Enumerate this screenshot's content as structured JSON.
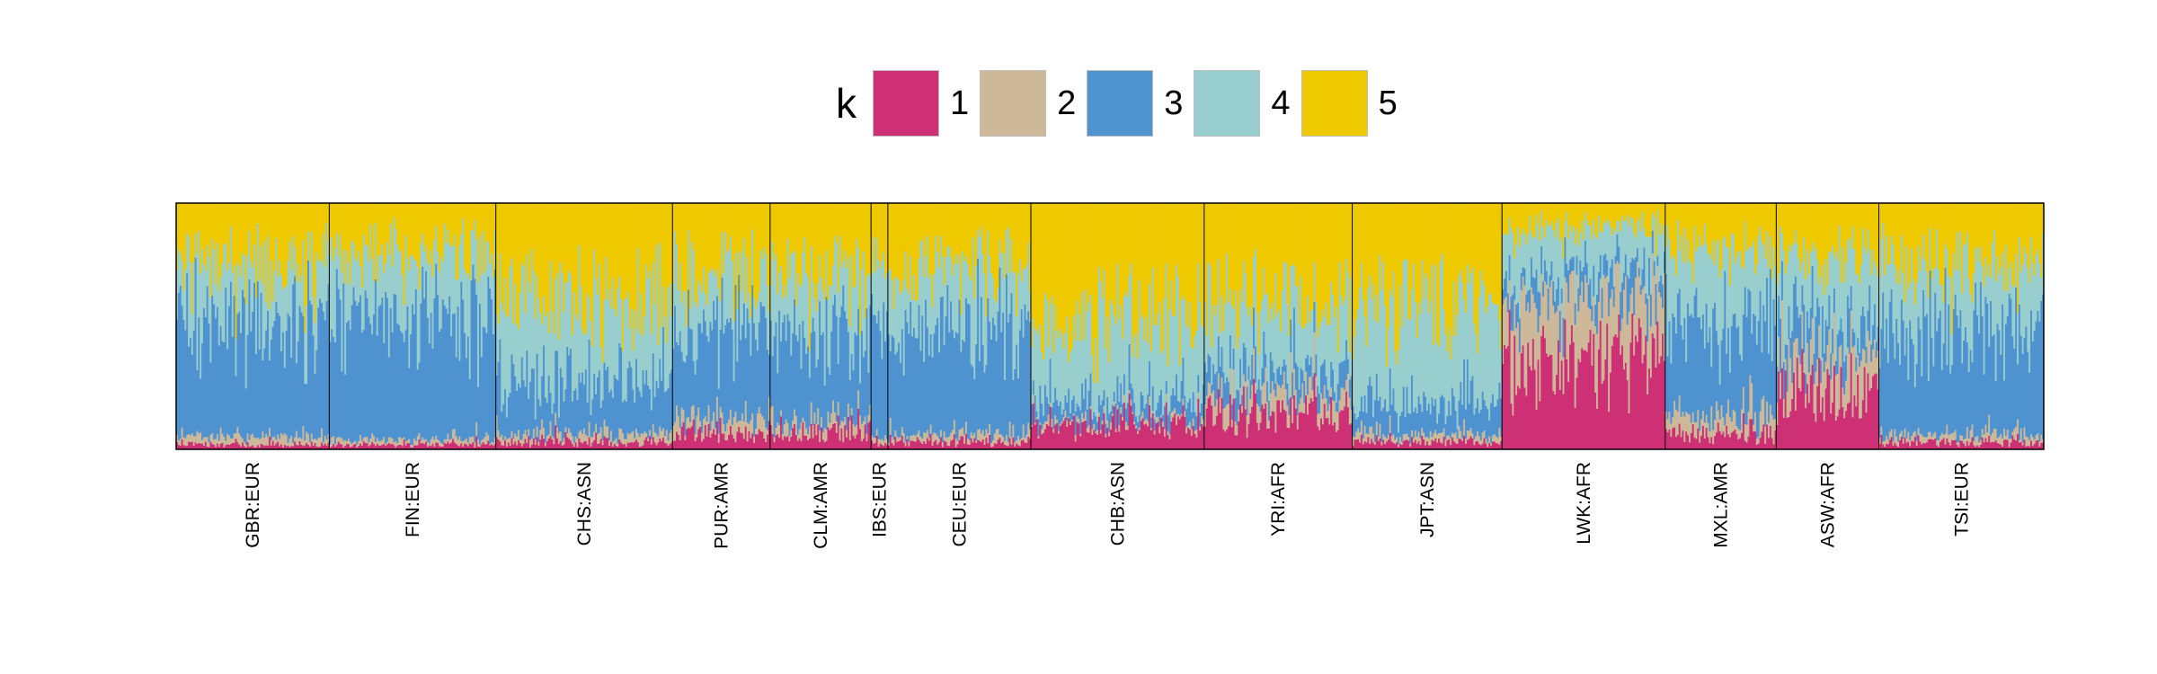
{
  "chart_data": {
    "type": "stacked-bar",
    "title": "",
    "legend": {
      "title": "k",
      "position": "top-center",
      "entries": [
        {
          "label": "1",
          "color": "#CE3075"
        },
        {
          "label": "2",
          "color": "#CDB899"
        },
        {
          "label": "3",
          "color": "#4E92D0"
        },
        {
          "label": "4",
          "color": "#99CECE"
        },
        {
          "label": "5",
          "color": "#EEC900"
        }
      ]
    },
    "ylim": [
      0,
      1
    ],
    "xlabel": "",
    "ylabel": "",
    "grid": false,
    "samples_per_group_note": "Approximate individual admixture proportions per population group (mean values per component k=1..5)",
    "groups": [
      {
        "label": "GBR:EUR",
        "n": 91,
        "mean": [
          0.02,
          0.03,
          0.45,
          0.25,
          0.25
        ]
      },
      {
        "label": "FIN:EUR",
        "n": 99,
        "mean": [
          0.02,
          0.02,
          0.5,
          0.26,
          0.2
        ]
      },
      {
        "label": "CHS:ASN",
        "n": 105,
        "mean": [
          0.03,
          0.03,
          0.2,
          0.34,
          0.4
        ]
      },
      {
        "label": "PUR:AMR",
        "n": 58,
        "mean": [
          0.06,
          0.06,
          0.36,
          0.22,
          0.3
        ]
      },
      {
        "label": "CLM:AMR",
        "n": 60,
        "mean": [
          0.07,
          0.05,
          0.34,
          0.24,
          0.3
        ]
      },
      {
        "label": "IBS:EUR",
        "n": 10,
        "mean": [
          0.03,
          0.03,
          0.44,
          0.25,
          0.25
        ]
      },
      {
        "label": "CEU:EUR",
        "n": 85,
        "mean": [
          0.03,
          0.03,
          0.42,
          0.27,
          0.25
        ]
      },
      {
        "label": "CHB:ASN",
        "n": 103,
        "mean": [
          0.1,
          0.02,
          0.08,
          0.3,
          0.5
        ]
      },
      {
        "label": "YRI:AFR",
        "n": 88,
        "mean": [
          0.15,
          0.08,
          0.1,
          0.27,
          0.4
        ]
      },
      {
        "label": "JPT:ASN",
        "n": 89,
        "mean": [
          0.03,
          0.03,
          0.12,
          0.4,
          0.42
        ]
      },
      {
        "label": "LWK:AFR",
        "n": 97,
        "mean": [
          0.38,
          0.24,
          0.1,
          0.18,
          0.1
        ]
      },
      {
        "label": "MXL:AMR",
        "n": 66,
        "mean": [
          0.06,
          0.08,
          0.38,
          0.28,
          0.2
        ]
      },
      {
        "label": "ASW:AFR",
        "n": 61,
        "mean": [
          0.25,
          0.15,
          0.15,
          0.25,
          0.2
        ]
      },
      {
        "label": "TSI:EUR",
        "n": 98,
        "mean": [
          0.03,
          0.03,
          0.42,
          0.27,
          0.25
        ]
      }
    ],
    "tick_labels": [
      "GBR:EUR",
      "FIN:EUR",
      "CHS:ASN",
      "PUR:AMR",
      "CLM:AMR",
      "IBS:EUR",
      "CEU:EUR",
      "CHB:ASN",
      "YRI:AFR",
      "JPT:ASN",
      "LWK:AFR",
      "MXL:AMR",
      "ASW:AFR",
      "TSI:EUR"
    ]
  }
}
